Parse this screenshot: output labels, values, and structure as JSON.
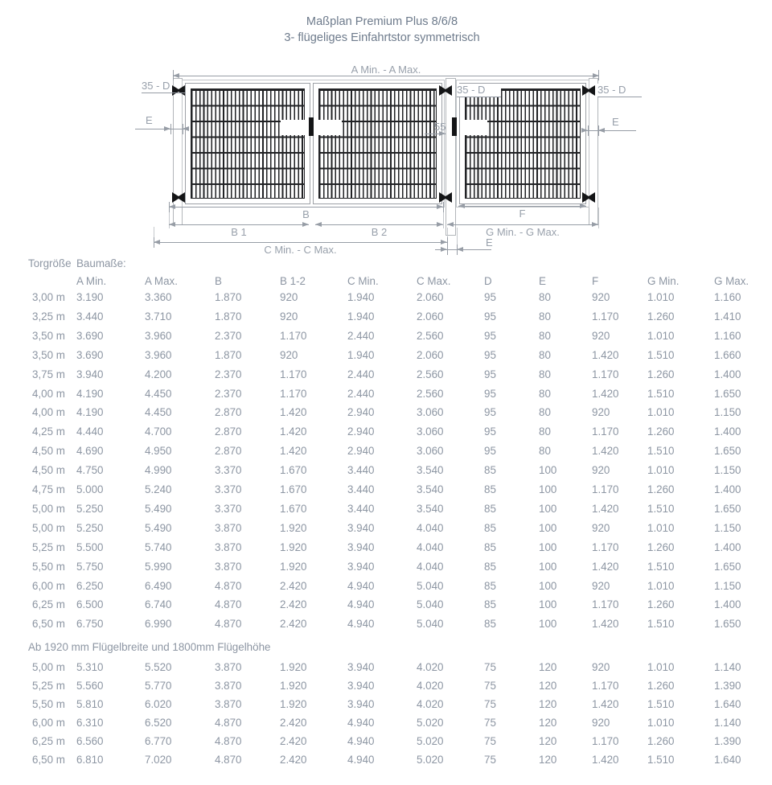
{
  "title": {
    "line1": "Maßplan Premium Plus 8/6/8",
    "line2": "3- flügeliges Einfahrtstor symmetrisch"
  },
  "drawing": {
    "dim_a": "A Min. - A Max.",
    "dim_35d_left": "35 - D",
    "dim_35d_middle": "35 - D",
    "dim_35d_right": "35 - D",
    "dim_e_left": "E",
    "dim_e_right": "E",
    "dim_e_bottom": "E",
    "dim_55": "55",
    "dim_b": "B",
    "dim_b1": "B 1",
    "dim_b2": "B 2",
    "dim_c": "C Min. - C Max.",
    "dim_f": "F",
    "dim_g": "G Min. - G Max."
  },
  "table": {
    "corner": "Torgröße",
    "group_header": "Baumaße:",
    "columns": [
      "A Min.",
      "A Max.",
      "B",
      "B 1-2",
      "C Min.",
      "C Max.",
      "D",
      "E",
      "F",
      "G Min.",
      "G Max."
    ],
    "sections": [
      {
        "note": "",
        "rows": [
          {
            "size": "3,00 m",
            "values": [
              "3.190",
              "3.360",
              "1.870",
              "920",
              "1.940",
              "2.060",
              "95",
              "80",
              "920",
              "1.010",
              "1.160"
            ]
          },
          {
            "size": "3,25 m",
            "values": [
              "3.440",
              "3.710",
              "1.870",
              "920",
              "1.940",
              "2.060",
              "95",
              "80",
              "1.170",
              "1.260",
              "1.410"
            ]
          },
          {
            "size": "3,50 m",
            "values": [
              "3.690",
              "3.960",
              "2.370",
              "1.170",
              "2.440",
              "2.560",
              "95",
              "80",
              "920",
              "1.010",
              "1.160"
            ]
          },
          {
            "size": "3,50 m",
            "values": [
              "3.690",
              "3.960",
              "1.870",
              "920",
              "1.940",
              "2.060",
              "95",
              "80",
              "1.420",
              "1.510",
              "1.660"
            ]
          },
          {
            "size": "3,75 m",
            "values": [
              "3.940",
              "4.200",
              "2.370",
              "1.170",
              "2.440",
              "2.560",
              "95",
              "80",
              "1.170",
              "1.260",
              "1.400"
            ]
          },
          {
            "size": "4,00 m",
            "values": [
              "4.190",
              "4.450",
              "2.370",
              "1.170",
              "2.440",
              "2.560",
              "95",
              "80",
              "1.420",
              "1.510",
              "1.650"
            ]
          },
          {
            "size": "4,00 m",
            "values": [
              "4.190",
              "4.450",
              "2.870",
              "1.420",
              "2.940",
              "3.060",
              "95",
              "80",
              "920",
              "1.010",
              "1.150"
            ]
          },
          {
            "size": "4,25 m",
            "values": [
              "4.440",
              "4.700",
              "2.870",
              "1.420",
              "2.940",
              "3.060",
              "95",
              "80",
              "1.170",
              "1.260",
              "1.400"
            ]
          },
          {
            "size": "4,50 m",
            "values": [
              "4.690",
              "4.950",
              "2.870",
              "1.420",
              "2.940",
              "3.060",
              "95",
              "80",
              "1.420",
              "1.510",
              "1.650"
            ]
          },
          {
            "size": "4,50 m",
            "values": [
              "4.750",
              "4.990",
              "3.370",
              "1.670",
              "3.440",
              "3.540",
              "85",
              "100",
              "920",
              "1.010",
              "1.150"
            ]
          },
          {
            "size": "4,75 m",
            "values": [
              "5.000",
              "5.240",
              "3.370",
              "1.670",
              "3.440",
              "3.540",
              "85",
              "100",
              "1.170",
              "1.260",
              "1.400"
            ]
          },
          {
            "size": "5,00 m",
            "values": [
              "5.250",
              "5.490",
              "3.370",
              "1.670",
              "3.440",
              "3.540",
              "85",
              "100",
              "1.420",
              "1.510",
              "1.650"
            ]
          },
          {
            "size": "5,00 m",
            "values": [
              "5.250",
              "5.490",
              "3.870",
              "1.920",
              "3.940",
              "4.040",
              "85",
              "100",
              "920",
              "1.010",
              "1.150"
            ]
          },
          {
            "size": "5,25 m",
            "values": [
              "5.500",
              "5.740",
              "3.870",
              "1.920",
              "3.940",
              "4.040",
              "85",
              "100",
              "1.170",
              "1.260",
              "1.400"
            ]
          },
          {
            "size": "5,50 m",
            "values": [
              "5.750",
              "5.990",
              "3.870",
              "1.920",
              "3.940",
              "4.040",
              "85",
              "100",
              "1.420",
              "1.510",
              "1.650"
            ]
          },
          {
            "size": "6,00 m",
            "values": [
              "6.250",
              "6.490",
              "4.870",
              "2.420",
              "4.940",
              "5.040",
              "85",
              "100",
              "920",
              "1.010",
              "1.150"
            ]
          },
          {
            "size": "6,25 m",
            "values": [
              "6.500",
              "6.740",
              "4.870",
              "2.420",
              "4.940",
              "5.040",
              "85",
              "100",
              "1.170",
              "1.260",
              "1.400"
            ]
          },
          {
            "size": "6,50 m",
            "values": [
              "6.750",
              "6.990",
              "4.870",
              "2.420",
              "4.940",
              "5.040",
              "85",
              "100",
              "1.420",
              "1.510",
              "1.650"
            ]
          }
        ]
      },
      {
        "note": "Ab 1920 mm Flügelbreite und 1800mm Flügelhöhe",
        "rows": [
          {
            "size": "5,00 m",
            "values": [
              "5.310",
              "5.520",
              "3.870",
              "1.920",
              "3.940",
              "4.020",
              "75",
              "120",
              "920",
              "1.010",
              "1.140"
            ]
          },
          {
            "size": "5,25 m",
            "values": [
              "5.560",
              "5.770",
              "3.870",
              "1.920",
              "3.940",
              "4.020",
              "75",
              "120",
              "1.170",
              "1.260",
              "1.390"
            ]
          },
          {
            "size": "5,50 m",
            "values": [
              "5.810",
              "6.020",
              "3.870",
              "1.920",
              "3.940",
              "4.020",
              "75",
              "120",
              "1.420",
              "1.510",
              "1.640"
            ]
          },
          {
            "size": "6,00 m",
            "values": [
              "6.310",
              "6.520",
              "4.870",
              "2.420",
              "4.940",
              "5.020",
              "75",
              "120",
              "920",
              "1.010",
              "1.140"
            ]
          },
          {
            "size": "6,25 m",
            "values": [
              "6.560",
              "6.770",
              "4.870",
              "2.420",
              "4.940",
              "5.020",
              "75",
              "120",
              "1.170",
              "1.260",
              "1.390"
            ]
          },
          {
            "size": "6,50 m",
            "values": [
              "6.810",
              "7.020",
              "4.870",
              "2.420",
              "4.940",
              "5.020",
              "75",
              "120",
              "1.420",
              "1.510",
              "1.640"
            ]
          }
        ]
      }
    ]
  },
  "colors": {
    "title": "#6e7b8c",
    "table_text": "#8d96a3",
    "dim_line": "#979da6",
    "bars_dark": "#212225"
  }
}
